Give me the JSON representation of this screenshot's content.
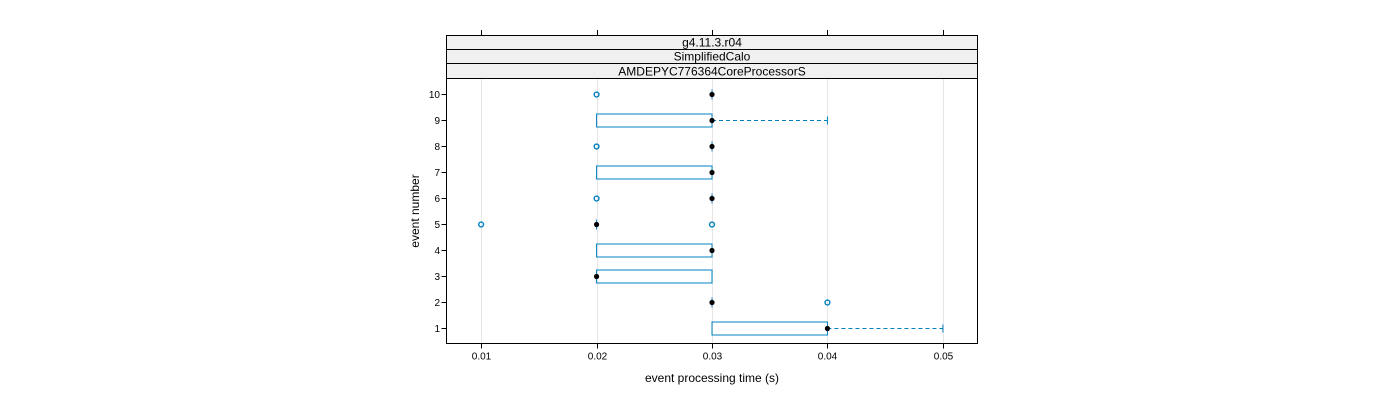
{
  "strips": [
    "g4.11.3.r04",
    "SimplifiedCalo",
    "AMDEPYC776364CoreProcessorS"
  ],
  "colors": {
    "box": "#0080c0",
    "median": "#000000",
    "grid": "#e6e6e6",
    "strip_bg": "#f0f0f0"
  },
  "chart_data": {
    "type": "boxplot",
    "orientation": "horizontal",
    "xlabel": "event processing time (s)",
    "ylabel": "event number",
    "xlim": [
      0.007,
      0.053
    ],
    "xticks": [
      {
        "value": 0.01,
        "label": "0.01"
      },
      {
        "value": 0.02,
        "label": "0.02"
      },
      {
        "value": 0.03,
        "label": "0.03"
      },
      {
        "value": 0.04,
        "label": "0.04"
      },
      {
        "value": 0.05,
        "label": "0.05"
      }
    ],
    "categories": [
      "1",
      "2",
      "3",
      "4",
      "5",
      "6",
      "7",
      "8",
      "9",
      "10"
    ],
    "boxes": [
      {
        "event": "1",
        "q1": 0.03,
        "median": 0.04,
        "q3": 0.04,
        "whisker_low": 0.03,
        "whisker_high": 0.05,
        "outliers": []
      },
      {
        "event": "2",
        "q1": 0.03,
        "median": 0.03,
        "q3": 0.03,
        "whisker_low": 0.03,
        "whisker_high": 0.03,
        "outliers": [
          0.04
        ]
      },
      {
        "event": "3",
        "q1": 0.02,
        "median": 0.02,
        "q3": 0.03,
        "whisker_low": 0.02,
        "whisker_high": 0.03,
        "outliers": []
      },
      {
        "event": "4",
        "q1": 0.02,
        "median": 0.03,
        "q3": 0.03,
        "whisker_low": 0.02,
        "whisker_high": 0.03,
        "outliers": []
      },
      {
        "event": "5",
        "q1": 0.02,
        "median": 0.02,
        "q3": 0.02,
        "whisker_low": 0.02,
        "whisker_high": 0.02,
        "outliers": [
          0.01,
          0.03
        ]
      },
      {
        "event": "6",
        "q1": 0.03,
        "median": 0.03,
        "q3": 0.03,
        "whisker_low": 0.03,
        "whisker_high": 0.03,
        "outliers": [
          0.02
        ]
      },
      {
        "event": "7",
        "q1": 0.02,
        "median": 0.03,
        "q3": 0.03,
        "whisker_low": 0.02,
        "whisker_high": 0.03,
        "outliers": []
      },
      {
        "event": "8",
        "q1": 0.03,
        "median": 0.03,
        "q3": 0.03,
        "whisker_low": 0.03,
        "whisker_high": 0.03,
        "outliers": [
          0.02
        ]
      },
      {
        "event": "9",
        "q1": 0.02,
        "median": 0.03,
        "q3": 0.03,
        "whisker_low": 0.02,
        "whisker_high": 0.04,
        "outliers": []
      },
      {
        "event": "10",
        "q1": 0.03,
        "median": 0.03,
        "q3": 0.03,
        "whisker_low": 0.03,
        "whisker_high": 0.03,
        "outliers": [
          0.02
        ]
      }
    ]
  }
}
